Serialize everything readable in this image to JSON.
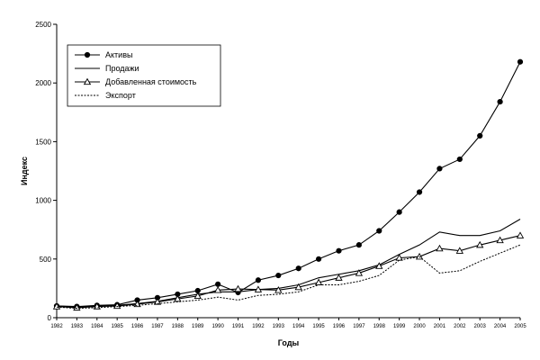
{
  "chart_data": {
    "type": "line",
    "xlabel": "Годы",
    "ylabel": "Индекс",
    "ylim": [
      0,
      2500
    ],
    "yticks": [
      0,
      500,
      1000,
      1500,
      2000,
      2500
    ],
    "grid": false,
    "legend_position": "top-left",
    "x": [
      1982,
      1983,
      1984,
      1985,
      1986,
      1987,
      1988,
      1989,
      1990,
      1991,
      1992,
      1993,
      1994,
      1995,
      1996,
      1997,
      1998,
      1999,
      2000,
      2001,
      2002,
      2003,
      2004,
      2005
    ],
    "series": [
      {
        "name": "Активы",
        "style": "solid-circle-marker",
        "values": [
          100,
          95,
          105,
          110,
          150,
          170,
          200,
          230,
          285,
          215,
          320,
          360,
          420,
          500,
          570,
          620,
          740,
          900,
          1070,
          1270,
          1350,
          1550,
          1840,
          2180
        ]
      },
      {
        "name": "Продажи",
        "style": "solid",
        "values": [
          100,
          90,
          100,
          105,
          120,
          140,
          170,
          200,
          220,
          220,
          240,
          250,
          280,
          340,
          370,
          400,
          450,
          540,
          620,
          730,
          700,
          700,
          740,
          840
        ]
      },
      {
        "name": "Добавленная стоимость",
        "style": "solid-triangle-marker",
        "values": [
          95,
          85,
          95,
          100,
          115,
          135,
          160,
          185,
          235,
          245,
          240,
          235,
          260,
          300,
          340,
          380,
          440,
          510,
          520,
          590,
          570,
          620,
          660,
          700
        ]
      },
      {
        "name": "Экспорт",
        "style": "dotted",
        "values": [
          90,
          80,
          85,
          95,
          105,
          120,
          135,
          150,
          175,
          150,
          190,
          200,
          220,
          280,
          280,
          310,
          360,
          490,
          520,
          380,
          400,
          480,
          550,
          620
        ]
      }
    ]
  }
}
